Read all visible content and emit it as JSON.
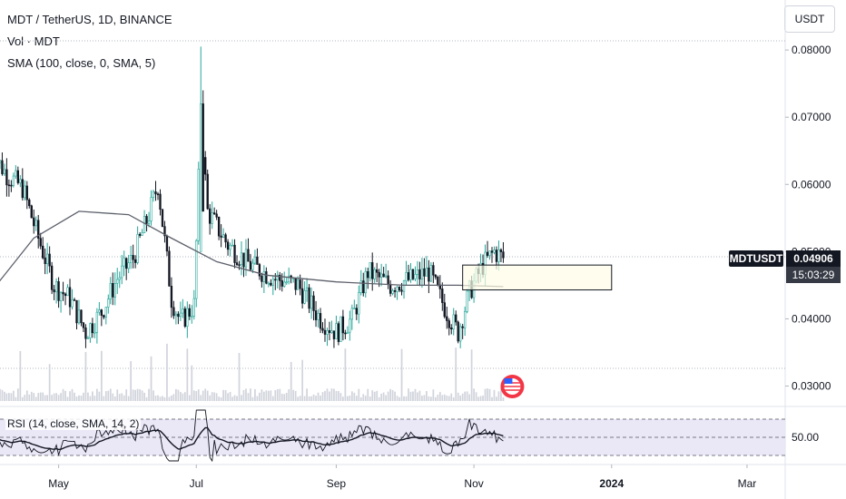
{
  "header": {
    "title": "MDT / TetherUS, 1D, BINANCE",
    "indicator_1": "Vol · MDT",
    "indicator_2": "SMA (100, close, 0, SMA, 5)",
    "currency_button": "USDT"
  },
  "price_tag": {
    "symbol": "MDTUSDT",
    "price": "0.04906",
    "countdown": "15:03:29"
  },
  "rsi_panel": {
    "label": "RSI (14, close, SMA, 14, 2)",
    "level_label": "50.00"
  },
  "colors": {
    "up": "#26a69a",
    "down": "#131722",
    "sma": "#5d606b",
    "rsi_band": "#e6e3f5",
    "box_fill": "#fffde7",
    "tag_bg": "#131722",
    "volume": "#d1d4dc"
  },
  "chart_data": {
    "type": "candlestick",
    "price_axis_ticks": [
      "0.08000",
      "0.07000",
      "0.06000",
      "0.05000",
      "0.04000",
      "0.03000"
    ],
    "ylim": [
      0.0275,
      0.0815
    ],
    "time_axis_ticks": [
      "May",
      "Jul",
      "Sep",
      "Nov",
      "2024",
      "Mar"
    ],
    "close_series": [
      {
        "date": "2023-04-01",
        "close": 0.065
      },
      {
        "date": "2023-04-08",
        "close": 0.0615
      },
      {
        "date": "2023-04-15",
        "close": 0.0595
      },
      {
        "date": "2023-04-22",
        "close": 0.052
      },
      {
        "date": "2023-04-29",
        "close": 0.045
      },
      {
        "date": "2023-05-06",
        "close": 0.043
      },
      {
        "date": "2023-05-13",
        "close": 0.038
      },
      {
        "date": "2023-05-20",
        "close": 0.041
      },
      {
        "date": "2023-05-27",
        "close": 0.046
      },
      {
        "date": "2023-06-03",
        "close": 0.049
      },
      {
        "date": "2023-06-10",
        "close": 0.0555
      },
      {
        "date": "2023-06-14",
        "close": 0.06
      },
      {
        "date": "2023-06-20",
        "close": 0.043
      },
      {
        "date": "2023-06-24",
        "close": 0.0395
      },
      {
        "date": "2023-06-30",
        "close": 0.042
      },
      {
        "date": "2023-07-03",
        "close": 0.07
      },
      {
        "date": "2023-07-06",
        "close": 0.056
      },
      {
        "date": "2023-07-15",
        "close": 0.051
      },
      {
        "date": "2023-07-25",
        "close": 0.048
      },
      {
        "date": "2023-08-05",
        "close": 0.046
      },
      {
        "date": "2023-08-15",
        "close": 0.045
      },
      {
        "date": "2023-08-25",
        "close": 0.04
      },
      {
        "date": "2023-09-01",
        "close": 0.038
      },
      {
        "date": "2023-09-08",
        "close": 0.04
      },
      {
        "date": "2023-09-15",
        "close": 0.047
      },
      {
        "date": "2023-09-25",
        "close": 0.045
      },
      {
        "date": "2023-10-05",
        "close": 0.046
      },
      {
        "date": "2023-10-12",
        "close": 0.047
      },
      {
        "date": "2023-10-20",
        "close": 0.041
      },
      {
        "date": "2023-10-25",
        "close": 0.038
      },
      {
        "date": "2023-10-30",
        "close": 0.044
      },
      {
        "date": "2023-11-05",
        "close": 0.048
      },
      {
        "date": "2023-11-10",
        "close": 0.05
      },
      {
        "date": "2023-11-14",
        "close": 0.04906
      }
    ],
    "sma_series": [
      {
        "date": "2023-04-01",
        "value": 0.044
      },
      {
        "date": "2023-04-20",
        "value": 0.052
      },
      {
        "date": "2023-05-10",
        "value": 0.056
      },
      {
        "date": "2023-06-01",
        "value": 0.0555
      },
      {
        "date": "2023-06-20",
        "value": 0.052
      },
      {
        "date": "2023-07-10",
        "value": 0.0485
      },
      {
        "date": "2023-08-01",
        "value": 0.0465
      },
      {
        "date": "2023-09-01",
        "value": 0.0455
      },
      {
        "date": "2023-10-01",
        "value": 0.045
      },
      {
        "date": "2023-10-25",
        "value": 0.045
      },
      {
        "date": "2023-11-14",
        "value": 0.0448
      }
    ],
    "highlight_box": {
      "start": "2023-10-27",
      "end": "2024-01-01",
      "top": 0.048,
      "bottom": 0.0443
    }
  }
}
